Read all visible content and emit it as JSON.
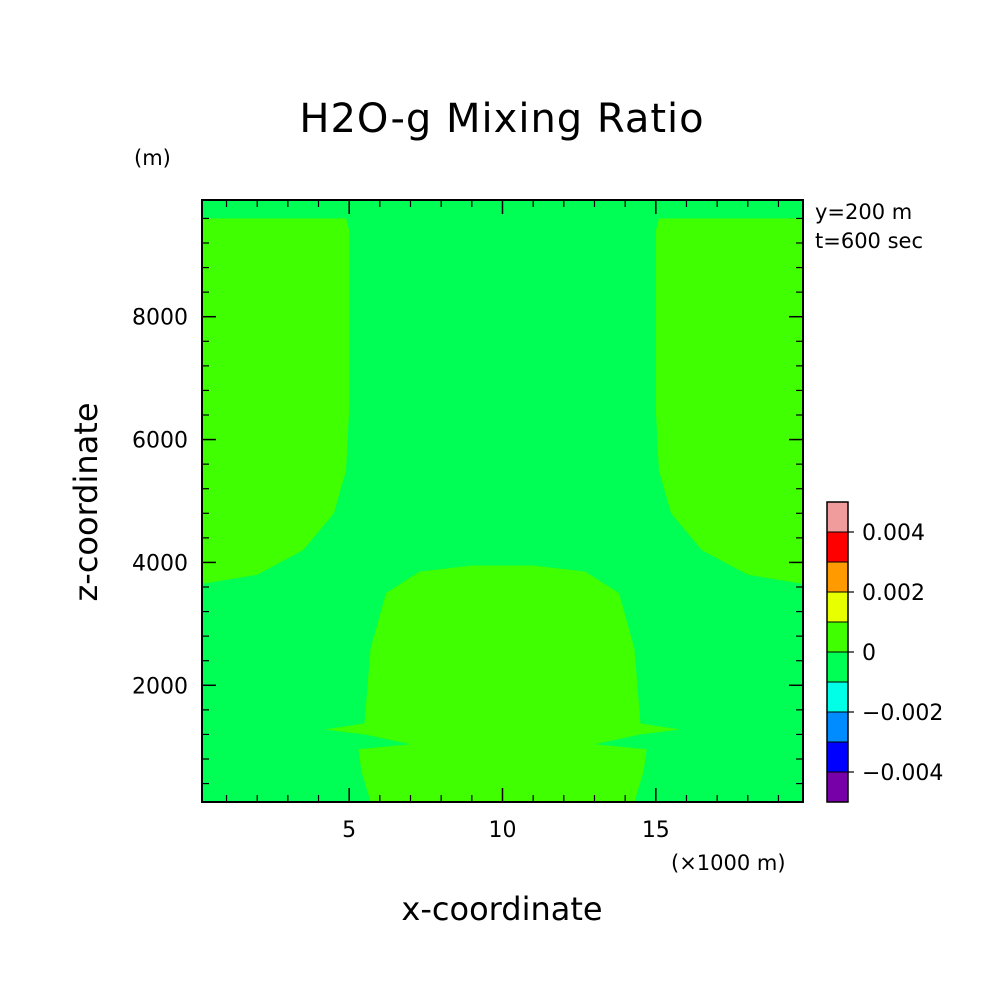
{
  "chart_data": {
    "type": "heatmap",
    "title": "H2O-g Mixing Ratio",
    "xlabel": "x-coordinate",
    "ylabel": "z-coordinate",
    "x_unit": "(×1000 m)",
    "y_unit": "(m)",
    "annotations": [
      "y=200 m",
      "t=600 sec"
    ],
    "xlim": [
      0.2,
      19.8
    ],
    "ylim": [
      100,
      9900
    ],
    "x_ticks": [
      5,
      10,
      15
    ],
    "x_tick_labels": [
      "5",
      "10",
      "15"
    ],
    "x_minor_ticks": [
      1,
      2,
      3,
      4,
      6,
      7,
      8,
      9,
      11,
      12,
      13,
      14,
      16,
      17,
      18,
      19
    ],
    "y_ticks": [
      2000,
      4000,
      6000,
      8000
    ],
    "y_tick_labels": [
      "2000",
      "4000",
      "6000",
      "8000"
    ],
    "y_minor_ticks": [
      400,
      800,
      1200,
      1600,
      2400,
      2800,
      3200,
      3600,
      4400,
      4800,
      5200,
      5600,
      6400,
      6800,
      7200,
      7600,
      8400,
      8800,
      9200,
      9600
    ],
    "background_level": "-0.001 to 0",
    "regions": [
      {
        "name": "upper-left-positive",
        "level": "0 to 0.001",
        "points": [
          [
            0.2,
            9600
          ],
          [
            4.9,
            9600
          ],
          [
            5.0,
            9400
          ],
          [
            5.0,
            6500
          ],
          [
            4.9,
            5500
          ],
          [
            4.5,
            4800
          ],
          [
            3.5,
            4200
          ],
          [
            2.0,
            3800
          ],
          [
            0.2,
            3650
          ]
        ]
      },
      {
        "name": "upper-right-positive",
        "level": "0 to 0.001",
        "points": [
          [
            19.8,
            9600
          ],
          [
            15.1,
            9600
          ],
          [
            15.0,
            9400
          ],
          [
            15.0,
            6500
          ],
          [
            15.1,
            5500
          ],
          [
            15.5,
            4800
          ],
          [
            16.5,
            4200
          ],
          [
            18.0,
            3800
          ],
          [
            19.8,
            3650
          ]
        ]
      },
      {
        "name": "lower-center-positive",
        "level": "0 to 0.001",
        "points": [
          [
            5.7,
            100
          ],
          [
            5.4,
            600
          ],
          [
            5.3,
            960
          ],
          [
            7.0,
            1040
          ],
          [
            5.5,
            1200
          ],
          [
            4.2,
            1280
          ],
          [
            5.5,
            1380
          ],
          [
            5.7,
            2600
          ],
          [
            6.2,
            3500
          ],
          [
            7.3,
            3850
          ],
          [
            9.0,
            3950
          ],
          [
            11.0,
            3950
          ],
          [
            12.7,
            3850
          ],
          [
            13.8,
            3500
          ],
          [
            14.3,
            2600
          ],
          [
            14.5,
            1380
          ],
          [
            15.8,
            1280
          ],
          [
            14.5,
            1200
          ],
          [
            13.0,
            1040
          ],
          [
            14.7,
            960
          ],
          [
            14.6,
            600
          ],
          [
            14.3,
            100
          ]
        ]
      }
    ],
    "colorbar": {
      "levels": [
        {
          "color": "#f09c9c"
        },
        {
          "color": "#ff0000"
        },
        {
          "color": "#ff9b00"
        },
        {
          "color": "#e8ff00"
        },
        {
          "color": "#3fff00"
        },
        {
          "color": "#00ff55"
        },
        {
          "color": "#00ffe6"
        },
        {
          "color": "#008cff"
        },
        {
          "color": "#0000ff"
        },
        {
          "color": "#7800a8"
        }
      ],
      "labels": [
        "0.004",
        "0.002",
        "0",
        "−0.002",
        "−0.004"
      ]
    }
  }
}
